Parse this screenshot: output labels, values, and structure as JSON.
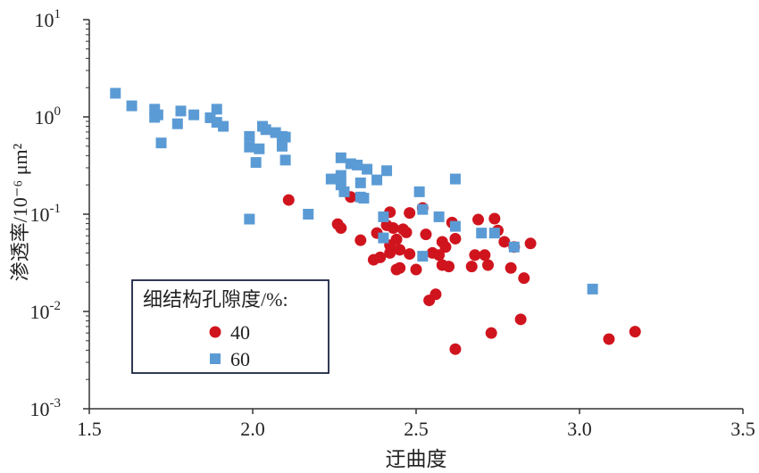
{
  "chart_data": {
    "type": "scatter",
    "title": "",
    "xlabel": "迂曲度",
    "ylabel": "渗透率/10⁻⁶ μm²",
    "xlim": [
      1.5,
      3.5
    ],
    "ylim": [
      0.001,
      10
    ],
    "yscale": "log",
    "x_ticks": [
      "1.5",
      "2.0",
      "2.5",
      "3.0",
      "3.5"
    ],
    "y_ticks": [
      {
        "base": "10",
        "exp": "-3"
      },
      {
        "base": "10",
        "exp": "-2"
      },
      {
        "base": "10",
        "exp": "-1"
      },
      {
        "base": "10",
        "exp": "0"
      },
      {
        "base": "10",
        "exp": "1"
      }
    ],
    "legend": {
      "title": "细结构孔隙度/%:",
      "position": "bottom-left"
    },
    "series": [
      {
        "name": "40",
        "color": "#d0141e",
        "marker": "circle",
        "points": [
          [
            2.11,
            0.14
          ],
          [
            2.3,
            0.15
          ],
          [
            2.26,
            0.079
          ],
          [
            2.27,
            0.072
          ],
          [
            2.33,
            0.054
          ],
          [
            2.37,
            0.034
          ],
          [
            2.38,
            0.064
          ],
          [
            2.39,
            0.036
          ],
          [
            2.41,
            0.077
          ],
          [
            2.42,
            0.105
          ],
          [
            2.42,
            0.048
          ],
          [
            2.42,
            0.04
          ],
          [
            2.43,
            0.072
          ],
          [
            2.44,
            0.027
          ],
          [
            2.44,
            0.055
          ],
          [
            2.45,
            0.043
          ],
          [
            2.45,
            0.028
          ],
          [
            2.46,
            0.07
          ],
          [
            2.47,
            0.065
          ],
          [
            2.48,
            0.039
          ],
          [
            2.48,
            0.103
          ],
          [
            2.5,
            0.027
          ],
          [
            2.52,
            0.116
          ],
          [
            2.53,
            0.062
          ],
          [
            2.54,
            0.013
          ],
          [
            2.55,
            0.04
          ],
          [
            2.56,
            0.015
          ],
          [
            2.57,
            0.038
          ],
          [
            2.58,
            0.052
          ],
          [
            2.58,
            0.03
          ],
          [
            2.59,
            0.046
          ],
          [
            2.6,
            0.029
          ],
          [
            2.61,
            0.082
          ],
          [
            2.62,
            0.056
          ],
          [
            2.62,
            0.0041
          ],
          [
            2.67,
            0.029
          ],
          [
            2.68,
            0.038
          ],
          [
            2.69,
            0.088
          ],
          [
            2.71,
            0.038
          ],
          [
            2.72,
            0.03
          ],
          [
            2.73,
            0.006
          ],
          [
            2.74,
            0.09
          ],
          [
            2.75,
            0.068
          ],
          [
            2.77,
            0.052
          ],
          [
            2.79,
            0.028
          ],
          [
            2.8,
            0.046
          ],
          [
            2.82,
            0.0083
          ],
          [
            2.83,
            0.022
          ],
          [
            2.85,
            0.05
          ],
          [
            3.09,
            0.0052
          ],
          [
            3.17,
            0.0062
          ]
        ]
      },
      {
        "name": "60",
        "color": "#5b9bd5",
        "marker": "square",
        "points": [
          [
            1.58,
            1.75
          ],
          [
            1.63,
            1.3
          ],
          [
            1.7,
            1.2
          ],
          [
            1.7,
            0.99
          ],
          [
            1.71,
            1.05
          ],
          [
            1.72,
            0.54
          ],
          [
            1.77,
            0.85
          ],
          [
            1.78,
            1.15
          ],
          [
            1.82,
            1.05
          ],
          [
            1.87,
            0.98
          ],
          [
            1.89,
            0.88
          ],
          [
            1.89,
            1.2
          ],
          [
            1.91,
            0.8
          ],
          [
            1.99,
            0.63
          ],
          [
            1.99,
            0.49
          ],
          [
            1.99,
            0.089
          ],
          [
            2.01,
            0.34
          ],
          [
            2.02,
            0.47
          ],
          [
            2.03,
            0.8
          ],
          [
            2.04,
            0.74
          ],
          [
            2.07,
            0.69
          ],
          [
            2.09,
            0.63
          ],
          [
            2.09,
            0.5
          ],
          [
            2.1,
            0.62
          ],
          [
            2.1,
            0.36
          ],
          [
            2.17,
            0.1
          ],
          [
            2.24,
            0.23
          ],
          [
            2.27,
            0.38
          ],
          [
            2.27,
            0.25
          ],
          [
            2.27,
            0.2
          ],
          [
            2.28,
            0.17
          ],
          [
            2.3,
            0.33
          ],
          [
            2.32,
            0.32
          ],
          [
            2.33,
            0.21
          ],
          [
            2.33,
            0.15
          ],
          [
            2.34,
            0.146
          ],
          [
            2.35,
            0.29
          ],
          [
            2.38,
            0.225
          ],
          [
            2.4,
            0.094
          ],
          [
            2.4,
            0.057
          ],
          [
            2.41,
            0.28
          ],
          [
            2.51,
            0.17
          ],
          [
            2.52,
            0.112
          ],
          [
            2.52,
            0.037
          ],
          [
            2.57,
            0.094
          ],
          [
            2.62,
            0.075
          ],
          [
            2.62,
            0.23
          ],
          [
            2.7,
            0.064
          ],
          [
            2.74,
            0.064
          ],
          [
            2.8,
            0.046
          ],
          [
            3.04,
            0.017
          ]
        ]
      }
    ]
  }
}
